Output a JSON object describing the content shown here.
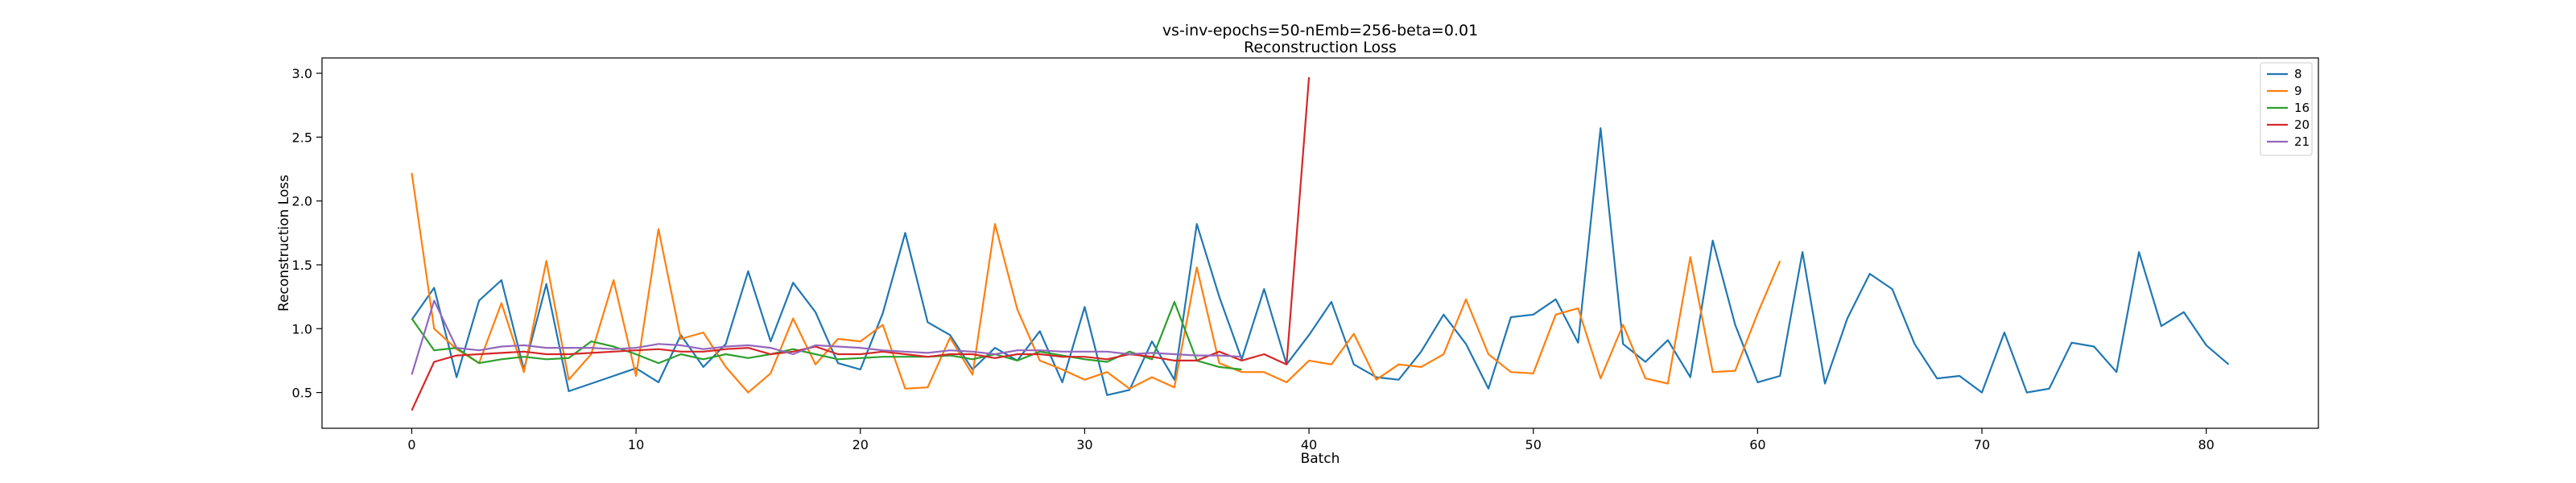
{
  "chart_data": {
    "type": "line",
    "title": "vs-inv-epochs=50-nEmb=256-beta=0.01",
    "subtitle": "Reconstruction Loss",
    "xlabel": "Batch",
    "ylabel": "Reconstruction Loss",
    "xlim": [
      -4,
      85
    ],
    "ylim": [
      0.22,
      3.12
    ],
    "xticks": [
      0,
      10,
      20,
      30,
      40,
      50,
      60,
      70,
      80
    ],
    "yticks": [
      0.5,
      1.0,
      1.5,
      2.0,
      2.5,
      3.0
    ],
    "xtick_labels": [
      "0",
      "10",
      "20",
      "30",
      "40",
      "50",
      "60",
      "70",
      "80"
    ],
    "ytick_labels": [
      "0.5",
      "1.0",
      "1.5",
      "2.0",
      "2.5",
      "3.0"
    ],
    "grid": false,
    "legend_position": "top-right",
    "series": [
      {
        "name": "8",
        "color": "#1f77b4",
        "values": [
          1.07,
          1.32,
          0.62,
          1.22,
          1.38,
          0.68,
          1.35,
          0.51,
          0.57,
          0.63,
          0.69,
          0.58,
          0.95,
          0.7,
          0.88,
          1.45,
          0.9,
          1.36,
          1.13,
          0.73,
          0.68,
          1.12,
          1.75,
          1.05,
          0.95,
          0.68,
          0.85,
          0.75,
          0.98,
          0.58,
          1.17,
          0.48,
          0.52,
          0.9,
          0.6,
          1.82,
          1.25,
          0.76,
          1.31,
          0.72,
          0.95,
          1.21,
          0.72,
          0.62,
          0.6,
          0.82,
          1.11,
          0.88,
          0.53,
          1.09,
          1.11,
          1.23,
          0.89,
          2.57,
          0.88,
          0.74,
          0.91,
          0.62,
          1.69,
          1.03,
          0.58,
          0.63,
          1.6,
          0.57,
          1.08,
          1.43,
          1.31,
          0.88,
          0.61,
          0.63,
          0.5,
          0.97,
          0.5,
          0.53,
          0.89,
          0.86,
          0.66,
          1.6,
          1.02,
          1.13,
          0.87,
          0.72
        ]
      },
      {
        "name": "9",
        "color": "#ff7f0e",
        "values": [
          2.22,
          1.0,
          0.84,
          0.73,
          1.2,
          0.66,
          1.53,
          0.6,
          0.8,
          1.38,
          0.63,
          1.78,
          0.92,
          0.97,
          0.7,
          0.5,
          0.65,
          1.08,
          0.72,
          0.92,
          0.9,
          1.03,
          0.53,
          0.54,
          0.93,
          0.64,
          1.82,
          1.15,
          0.75,
          0.68,
          0.6,
          0.66,
          0.53,
          0.62,
          0.54,
          1.48,
          0.73,
          0.66,
          0.66,
          0.58,
          0.75,
          0.72,
          0.96,
          0.6,
          0.72,
          0.7,
          0.8,
          1.23,
          0.8,
          0.66,
          0.65,
          1.11,
          1.16,
          0.61,
          1.03,
          0.61,
          0.57,
          1.56,
          0.66,
          0.67,
          1.12,
          1.53
        ]
      },
      {
        "name": "16",
        "color": "#2ca02c",
        "values": [
          1.08,
          0.83,
          0.85,
          0.73,
          0.76,
          0.78,
          0.76,
          0.77,
          0.9,
          0.86,
          0.8,
          0.73,
          0.8,
          0.76,
          0.8,
          0.77,
          0.8,
          0.84,
          0.8,
          0.76,
          0.77,
          0.78,
          0.78,
          0.78,
          0.79,
          0.76,
          0.8,
          0.75,
          0.82,
          0.79,
          0.76,
          0.74,
          0.82,
          0.76,
          1.21,
          0.75,
          0.7,
          0.68
        ]
      },
      {
        "name": "20",
        "color": "#d62728",
        "values": [
          0.36,
          0.74,
          0.79,
          0.8,
          0.81,
          0.82,
          0.8,
          0.8,
          0.81,
          0.82,
          0.83,
          0.84,
          0.82,
          0.82,
          0.84,
          0.85,
          0.8,
          0.82,
          0.86,
          0.8,
          0.8,
          0.82,
          0.8,
          0.78,
          0.8,
          0.8,
          0.77,
          0.8,
          0.8,
          0.78,
          0.78,
          0.76,
          0.8,
          0.78,
          0.75,
          0.75,
          0.82,
          0.75,
          0.8,
          0.72,
          2.97
        ]
      },
      {
        "name": "21",
        "color": "#9467bd",
        "values": [
          0.64,
          1.22,
          0.85,
          0.83,
          0.86,
          0.87,
          0.85,
          0.85,
          0.85,
          0.84,
          0.85,
          0.88,
          0.87,
          0.84,
          0.86,
          0.87,
          0.85,
          0.8,
          0.87,
          0.86,
          0.85,
          0.83,
          0.82,
          0.81,
          0.83,
          0.82,
          0.8,
          0.83,
          0.83,
          0.82,
          0.82,
          0.82,
          0.8,
          0.81,
          0.8,
          0.79,
          0.79,
          0.78
        ]
      }
    ]
  }
}
